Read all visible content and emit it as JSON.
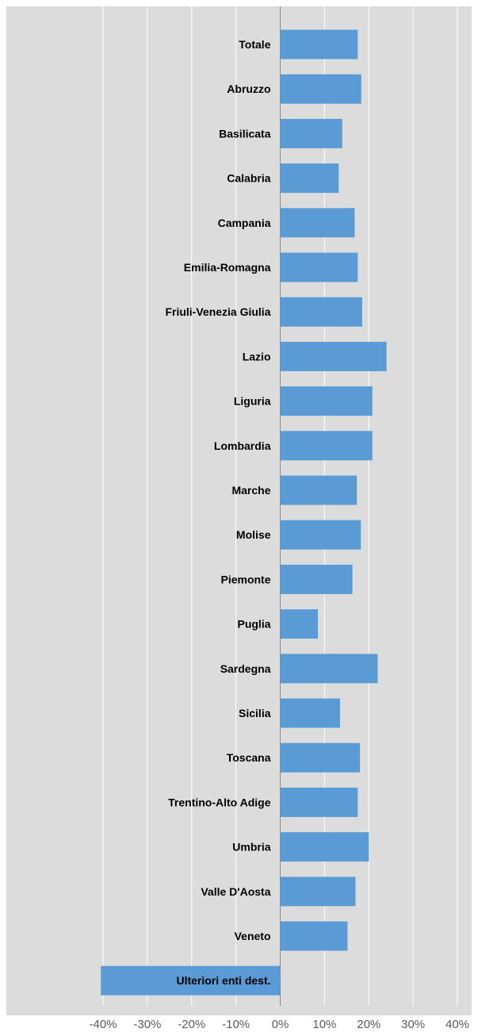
{
  "chart_data": {
    "type": "bar",
    "orientation": "horizontal",
    "categories": [
      "Totale",
      "Abruzzo",
      "Basilicata",
      "Calabria",
      "Campania",
      "Emilia-Romagna",
      "Friuli-Venezia Giulia",
      "Lazio",
      "Liguria",
      "Lombardia",
      "Marche",
      "Molise",
      "Piemonte",
      "Puglia",
      "Sardegna",
      "Sicilia",
      "Toscana",
      "Trentino-Alto Adige",
      "Umbria",
      "Valle D'Aosta",
      "Veneto",
      "Ulteriori enti dest."
    ],
    "values": [
      17.5,
      18.3,
      14.0,
      13.2,
      16.8,
      17.5,
      18.5,
      24.0,
      20.8,
      20.8,
      17.3,
      18.2,
      16.3,
      8.5,
      22.0,
      13.5,
      18.0,
      17.5,
      20.0,
      17.0,
      15.2,
      -40.5
    ],
    "x_ticks": [
      "-40%",
      "-30%",
      "-20%",
      "-10%",
      "0%",
      "10%",
      "20%",
      "30%",
      "40%"
    ],
    "x_tick_values": [
      -40,
      -30,
      -20,
      -10,
      0,
      10,
      20,
      30,
      40
    ],
    "xlim": [
      -40,
      40
    ],
    "grid": true,
    "bar_color": "#5b9bd5",
    "background_color": "#dcdcdc"
  }
}
